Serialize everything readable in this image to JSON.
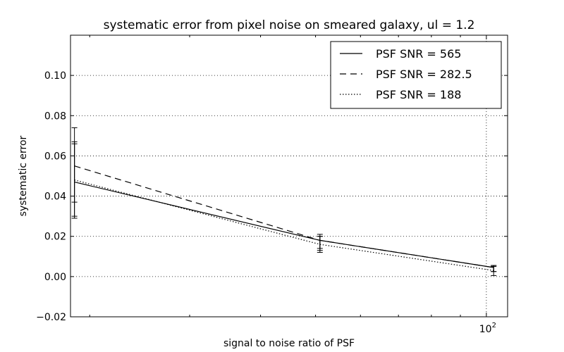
{
  "chart_data": {
    "type": "line",
    "title": "systematic error from pixel noise on smeared galaxy, ul = 1.2",
    "xlabel": "signal to noise ratio of PSF",
    "ylabel": "systematic error",
    "xscale": "log",
    "xlim": [
      18.5,
      109
    ],
    "ylim": [
      -0.02,
      0.12
    ],
    "yticks": [
      -0.02,
      0.0,
      0.02,
      0.04,
      0.06,
      0.08,
      0.1
    ],
    "ytick_labels": [
      "−0.02",
      "0.00",
      "0.02",
      "0.04",
      "0.06",
      "0.08",
      "0.10"
    ],
    "xtick_value": 100,
    "xtick_base": "10",
    "xtick_exp": "2",
    "grid": true,
    "legend_position": "top-right",
    "x": [
      18.8,
      50.9,
      103
    ],
    "series": [
      {
        "name": "PSF SNR = 565",
        "linestyle": "solid",
        "values": [
          0.047,
          0.018,
          0.0045
        ],
        "err_low": [
          0.029,
          0.014,
          0.0025
        ],
        "err_high": [
          0.066,
          0.021,
          0.0055
        ]
      },
      {
        "name": "PSF SNR = 282.5",
        "linestyle": "dashed",
        "values": [
          0.055,
          0.018,
          0.0045
        ],
        "err_low": [
          0.037,
          0.013,
          0.0025
        ],
        "err_high": [
          0.074,
          0.02,
          0.0055
        ]
      },
      {
        "name": "PSF SNR = 188",
        "linestyle": "dotted",
        "values": [
          0.048,
          0.016,
          0.003
        ],
        "err_low": [
          0.03,
          0.012,
          0.0005
        ],
        "err_high": [
          0.067,
          0.02,
          0.005
        ]
      }
    ]
  }
}
